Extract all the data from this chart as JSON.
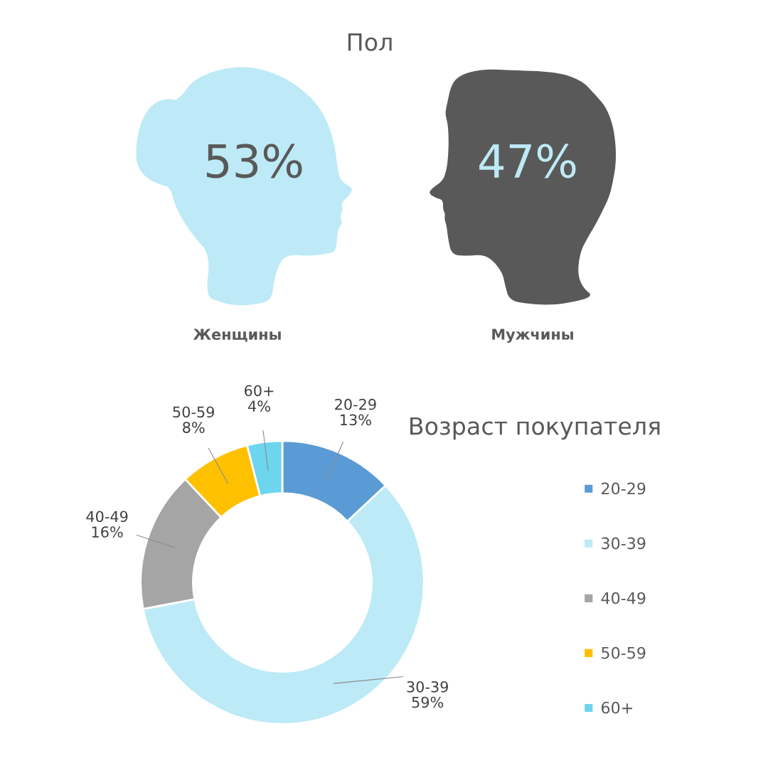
{
  "chart_data": [
    {
      "type": "other",
      "title": "Пол",
      "categories": [
        "Женщины",
        "Мужчины"
      ],
      "values": [
        53,
        47
      ],
      "value_labels": [
        "53%",
        "47%"
      ],
      "colors": [
        "#bdeaf6",
        "#595959"
      ]
    },
    {
      "type": "donut",
      "title": "Возраст покупателя",
      "categories": [
        "20-29",
        "30-39",
        "40-49",
        "50-59",
        "60+"
      ],
      "values": [
        13,
        59,
        16,
        8,
        4
      ],
      "value_labels": [
        "13%",
        "59%",
        "16%",
        "8%",
        "4%"
      ],
      "colors": [
        "#5b9bd5",
        "#bdeaf7",
        "#a5a5a5",
        "#ffc000",
        "#6dd5ed"
      ],
      "legend": "right"
    }
  ]
}
